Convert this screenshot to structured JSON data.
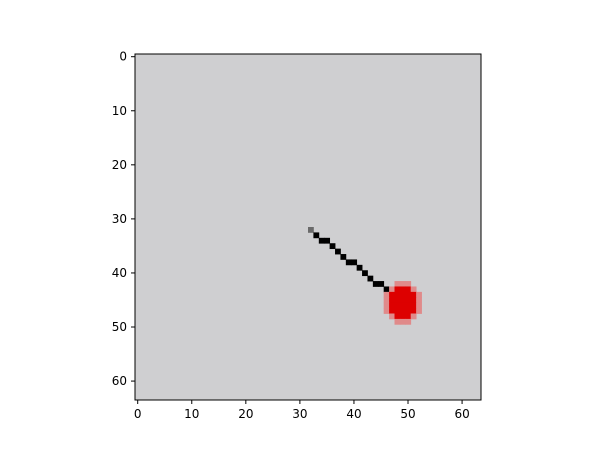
{
  "image_view": {
    "x_ticks": [
      "0",
      "10",
      "20",
      "30",
      "40",
      "50",
      "60"
    ],
    "y_ticks": [
      "0",
      "10",
      "20",
      "30",
      "40",
      "50",
      "60"
    ],
    "x_tick_values": [
      0,
      10,
      20,
      30,
      40,
      50,
      60
    ],
    "y_tick_values": [
      0,
      10,
      20,
      30,
      40,
      50,
      60
    ],
    "image_size": [
      64,
      64
    ],
    "background_color": "#cfcfd1",
    "rod": {
      "start": [
        32,
        32
      ],
      "end": [
        47,
        44
      ],
      "color": "#000000"
    },
    "ball": {
      "center": [
        49,
        45.5
      ],
      "radius": 3,
      "color": "#dd0000"
    }
  }
}
